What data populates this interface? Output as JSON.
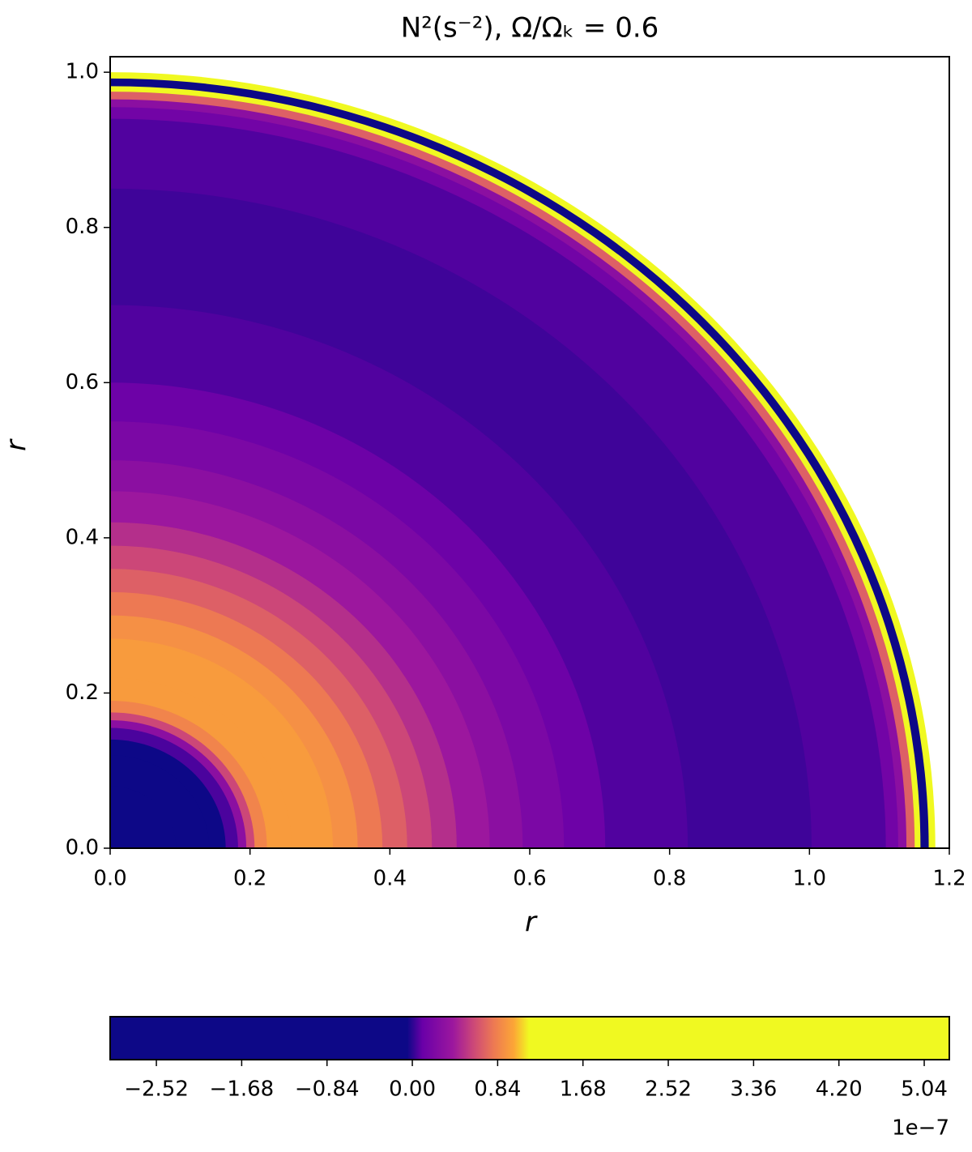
{
  "chart_data": {
    "type": "contour",
    "title": "N²(s⁻²), Ω/Ωₖ = 0.6",
    "x_label": "r",
    "y_label": "r",
    "xlim": [
      0,
      1.2
    ],
    "ylim": [
      0,
      1.02
    ],
    "xticks": [
      {
        "value": 0,
        "label": "0.0"
      },
      {
        "value": 0.2,
        "label": "0.2"
      },
      {
        "value": 0.4,
        "label": "0.4"
      },
      {
        "value": 0.6,
        "label": "0.6"
      },
      {
        "value": 0.8,
        "label": "0.8"
      },
      {
        "value": 1.0,
        "label": "1.0"
      },
      {
        "value": 1.2,
        "label": "1.2"
      }
    ],
    "yticks": [
      {
        "value": 0,
        "label": "0.0"
      },
      {
        "value": 0.2,
        "label": "0.2"
      },
      {
        "value": 0.4,
        "label": "0.4"
      },
      {
        "value": 0.6,
        "label": "0.6"
      },
      {
        "value": 0.8,
        "label": "0.8"
      },
      {
        "value": 1.0,
        "label": "1.0"
      }
    ],
    "boundary_x": 1.18,
    "boundary_y": 1.0,
    "profile": {
      "radius": [
        0.08,
        0.12,
        0.14,
        0.155,
        0.165,
        0.175,
        0.19,
        0.22,
        0.27,
        0.3,
        0.33,
        0.36,
        0.39,
        0.42,
        0.46,
        0.5,
        0.55,
        0.6,
        0.7,
        0.85,
        0.94,
        0.955,
        0.965,
        0.975,
        0.982,
        0.988,
        0.992,
        0.995,
        1.0
      ],
      "values": [
        -3,
        -2.8,
        -1,
        0.05,
        0.3,
        0.6,
        0.85,
        0.95,
        0.95,
        0.9,
        0.8,
        0.7,
        0.6,
        0.5,
        0.4,
        0.3,
        0.2,
        0.12,
        0.06,
        0.03,
        0.06,
        0.15,
        0.3,
        0.7,
        1.3,
        -0.5,
        -1,
        2.5,
        3
      ]
    },
    "colorbar": {
      "lim": [
        -2.975,
        5.287
      ],
      "stops": [
        -2.975,
        -0.05,
        0.1,
        0.4,
        0.6,
        0.8,
        1.0,
        1.15,
        5.287
      ],
      "colors": [
        "#0d0887",
        "#0d0887",
        "#6a00a8",
        "#9c179e",
        "#cc4778",
        "#ed7953",
        "#fca636",
        "#f0f921",
        "#f0f921"
      ],
      "ticks": [
        {
          "value": -2.52,
          "label": "−2.52"
        },
        {
          "value": -1.68,
          "label": "−1.68"
        },
        {
          "value": -0.84,
          "label": "−0.84"
        },
        {
          "value": 0,
          "label": "0.00"
        },
        {
          "value": 0.84,
          "label": "0.84"
        },
        {
          "value": 1.68,
          "label": "1.68"
        },
        {
          "value": 2.52,
          "label": "2.52"
        },
        {
          "value": 3.36,
          "label": "3.36"
        },
        {
          "value": 4.2,
          "label": "4.20"
        },
        {
          "value": 5.04,
          "label": "5.04"
        }
      ],
      "offset_label": "1e−7"
    }
  }
}
